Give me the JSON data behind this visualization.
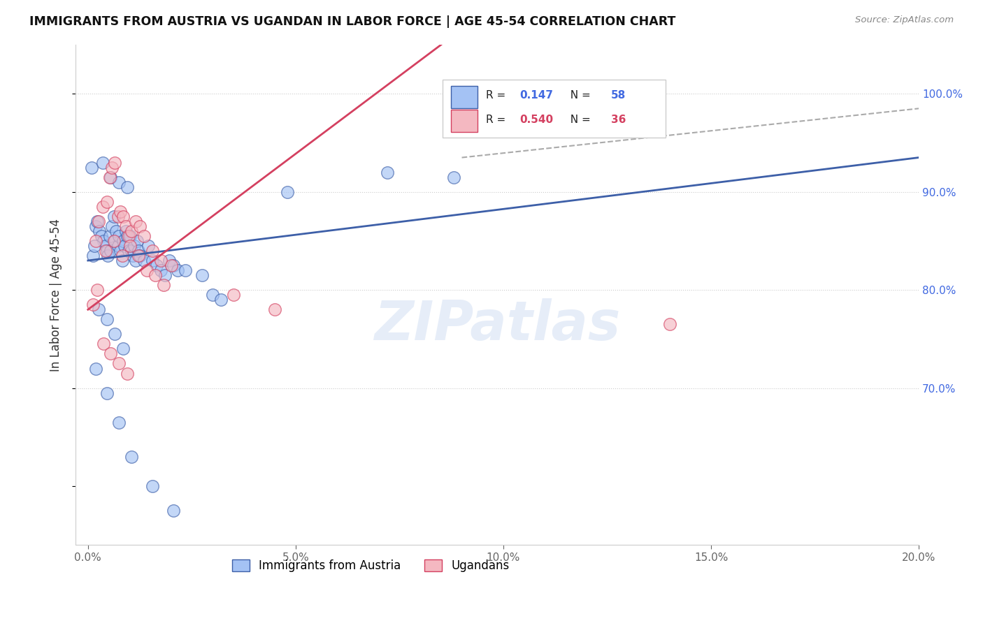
{
  "title": "IMMIGRANTS FROM AUSTRIA VS UGANDAN IN LABOR FORCE | AGE 45-54 CORRELATION CHART",
  "source": "Source: ZipAtlas.com",
  "ylabel": "In Labor Force | Age 45-54",
  "x_tick_labels": [
    "0.0%",
    "5.0%",
    "10.0%",
    "15.0%",
    "20.0%"
  ],
  "x_tick_vals": [
    0.0,
    5.0,
    10.0,
    15.0,
    20.0
  ],
  "y_tick_labels": [
    "70.0%",
    "80.0%",
    "90.0%",
    "100.0%"
  ],
  "y_tick_vals": [
    70.0,
    80.0,
    90.0,
    100.0
  ],
  "xlim": [
    -0.3,
    20.0
  ],
  "ylim": [
    54.0,
    105.0
  ],
  "color_blue": "#a4c2f4",
  "color_pink": "#f4b8c1",
  "color_line_blue": "#3d5fa8",
  "color_line_pink": "#d44060",
  "color_dashed": "#aaaaaa",
  "austria_x": [
    0.18,
    0.22,
    0.28,
    0.32,
    0.38,
    0.42,
    0.45,
    0.48,
    0.52,
    0.55,
    0.58,
    0.62,
    0.65,
    0.68,
    0.72,
    0.75,
    0.78,
    0.82,
    0.85,
    0.88,
    0.92,
    0.95,
    0.98,
    1.02,
    1.05,
    1.08,
    1.12,
    1.15,
    1.18,
    1.22,
    1.25,
    1.35,
    1.45,
    1.55,
    1.65,
    1.75,
    1.85,
    1.95,
    2.05,
    2.15,
    2.35,
    2.75,
    0.12,
    0.15,
    3.0,
    3.2,
    0.08,
    0.35,
    0.55,
    0.75,
    0.95,
    4.8,
    7.2,
    8.8,
    0.25,
    0.45,
    0.65,
    0.85
  ],
  "austria_y": [
    86.5,
    87.0,
    86.0,
    85.5,
    85.0,
    84.5,
    84.0,
    83.5,
    85.5,
    84.0,
    86.5,
    87.5,
    85.0,
    86.0,
    84.5,
    85.5,
    84.0,
    83.0,
    85.0,
    84.5,
    86.0,
    85.5,
    84.0,
    85.5,
    84.0,
    83.5,
    84.5,
    83.0,
    85.0,
    84.0,
    83.5,
    83.0,
    84.5,
    83.0,
    82.5,
    82.0,
    81.5,
    83.0,
    82.5,
    82.0,
    82.0,
    81.5,
    83.5,
    84.5,
    79.5,
    79.0,
    92.5,
    93.0,
    91.5,
    91.0,
    90.5,
    90.0,
    92.0,
    91.5,
    78.0,
    77.0,
    75.5,
    74.0
  ],
  "austria_y_low": [
    72.0,
    69.5,
    66.5,
    63.0,
    60.0,
    57.5
  ],
  "austria_x_low": [
    0.18,
    0.45,
    0.75,
    1.05,
    1.55,
    2.05
  ],
  "ugandan_x": [
    0.18,
    0.25,
    0.35,
    0.45,
    0.52,
    0.58,
    0.65,
    0.72,
    0.78,
    0.85,
    0.92,
    0.98,
    1.05,
    1.15,
    1.25,
    1.35,
    1.55,
    1.75,
    2.0,
    0.12,
    0.22,
    0.42,
    0.62,
    0.82,
    1.02,
    1.22,
    1.42,
    1.62,
    1.82,
    3.5,
    4.5,
    0.38,
    0.55,
    0.75,
    0.95,
    14.0
  ],
  "ugandan_y": [
    85.0,
    87.0,
    88.5,
    89.0,
    91.5,
    92.5,
    93.0,
    87.5,
    88.0,
    87.5,
    86.5,
    85.5,
    86.0,
    87.0,
    86.5,
    85.5,
    84.0,
    83.0,
    82.5,
    78.5,
    80.0,
    84.0,
    85.0,
    83.5,
    84.5,
    83.5,
    82.0,
    81.5,
    80.5,
    79.5,
    78.0,
    74.5,
    73.5,
    72.5,
    71.5,
    76.5
  ],
  "r_austria": "0.147",
  "n_austria": "58",
  "r_ugandan": "0.540",
  "n_ugandan": "36",
  "blue_reg_x0": 0.0,
  "blue_reg_y0": 83.0,
  "blue_reg_x1": 20.0,
  "blue_reg_y1": 93.5,
  "pink_reg_x0": 0.0,
  "pink_reg_y0": 78.0,
  "pink_reg_x1": 8.5,
  "pink_reg_y1": 105.0,
  "dash_x0": 9.0,
  "dash_y0": 93.5,
  "dash_x1": 20.0,
  "dash_y1": 98.5
}
